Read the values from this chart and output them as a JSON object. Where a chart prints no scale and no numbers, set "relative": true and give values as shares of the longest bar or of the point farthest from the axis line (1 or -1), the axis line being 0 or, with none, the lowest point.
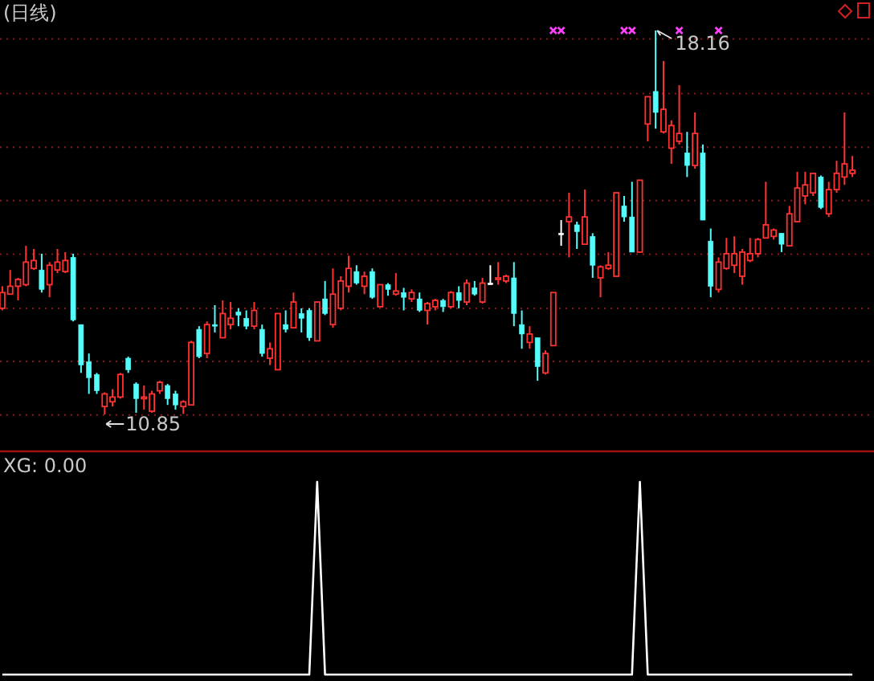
{
  "chart_data": [
    {
      "type": "candlestick",
      "title": "(日线)",
      "categories": [
        null,
        null,
        null,
        null,
        null,
        null,
        null,
        null,
        null,
        null,
        null,
        null,
        null,
        null,
        null,
        null,
        null,
        null,
        null,
        null,
        null,
        null,
        null,
        null,
        null,
        null,
        null,
        null,
        null,
        null,
        null,
        null,
        null,
        null,
        null,
        null,
        null,
        null,
        null,
        null,
        null,
        null,
        null,
        null,
        null,
        null,
        null,
        null,
        null,
        null,
        null,
        null,
        null,
        null,
        null,
        null,
        null,
        null,
        null,
        null,
        null,
        null,
        null,
        null,
        null,
        null,
        null,
        null,
        null,
        null,
        null,
        null,
        null,
        null,
        null,
        null,
        null,
        null,
        null,
        null,
        null,
        null,
        null,
        null,
        null,
        null,
        null,
        null,
        null,
        null,
        null,
        null,
        null,
        null,
        null,
        null,
        null,
        null,
        null,
        null,
        null,
        null,
        null,
        null,
        null,
        null,
        null,
        null,
        null
      ],
      "ohlc": [
        [
          12.87,
          13.29,
          12.83,
          13.17
        ],
        [
          13.14,
          13.6,
          13.14,
          13.29
        ],
        [
          13.29,
          13.45,
          13.02,
          13.42
        ],
        [
          13.32,
          14.06,
          13.29,
          13.75
        ],
        [
          13.63,
          14.0,
          13.6,
          13.78
        ],
        [
          13.6,
          13.91,
          13.17,
          13.23
        ],
        [
          13.32,
          13.75,
          13.08,
          13.69
        ],
        [
          13.6,
          14.0,
          13.54,
          13.75
        ],
        [
          13.57,
          13.94,
          13.54,
          13.78
        ],
        [
          13.84,
          13.91,
          12.62,
          12.65
        ],
        [
          12.56,
          12.56,
          11.64,
          11.79
        ],
        [
          11.85,
          12.01,
          11.24,
          11.55
        ],
        [
          11.61,
          11.64,
          11.24,
          11.3
        ],
        [
          11.0,
          11.27,
          10.85,
          11.24
        ],
        [
          11.09,
          11.33,
          11.0,
          11.18
        ],
        [
          11.18,
          11.64,
          11.15,
          11.61
        ],
        [
          11.92,
          11.95,
          11.64,
          11.7
        ],
        [
          11.43,
          11.46,
          10.88,
          11.15
        ],
        [
          11.15,
          11.4,
          10.94,
          11.18
        ],
        [
          10.91,
          11.3,
          10.88,
          11.24
        ],
        [
          11.3,
          11.49,
          11.24,
          11.46
        ],
        [
          11.4,
          11.43,
          11.03,
          11.15
        ],
        [
          11.24,
          11.3,
          10.94,
          11.03
        ],
        [
          11.0,
          11.12,
          10.86,
          11.09
        ],
        [
          11.03,
          12.25,
          11.03,
          12.22
        ],
        [
          12.47,
          12.53,
          11.92,
          11.95
        ],
        [
          12.01,
          12.62,
          11.92,
          12.56
        ],
        [
          12.56,
          12.93,
          12.41,
          12.53
        ],
        [
          12.31,
          13.02,
          12.31,
          12.77
        ],
        [
          12.56,
          12.99,
          12.47,
          12.68
        ],
        [
          12.8,
          12.87,
          12.53,
          12.74
        ],
        [
          12.68,
          12.83,
          12.47,
          12.53
        ],
        [
          12.53,
          12.99,
          12.47,
          12.83
        ],
        [
          12.47,
          12.56,
          11.95,
          12.01
        ],
        [
          11.92,
          12.22,
          11.79,
          12.1
        ],
        [
          11.7,
          12.77,
          11.7,
          12.77
        ],
        [
          12.56,
          12.83,
          12.41,
          12.47
        ],
        [
          12.5,
          13.17,
          12.5,
          12.99
        ],
        [
          12.77,
          12.87,
          12.41,
          12.68
        ],
        [
          12.83,
          12.87,
          12.25,
          12.31
        ],
        [
          12.25,
          12.99,
          12.25,
          12.99
        ],
        [
          13.05,
          13.39,
          12.74,
          12.77
        ],
        [
          12.56,
          13.63,
          12.5,
          13.14
        ],
        [
          12.87,
          13.48,
          12.83,
          13.39
        ],
        [
          13.29,
          13.87,
          13.17,
          13.63
        ],
        [
          13.57,
          13.69,
          13.32,
          13.35
        ],
        [
          13.29,
          13.57,
          13.14,
          13.48
        ],
        [
          13.57,
          13.63,
          13.05,
          13.08
        ],
        [
          12.9,
          13.32,
          12.9,
          13.32
        ],
        [
          13.32,
          13.35,
          13.11,
          13.23
        ],
        [
          13.14,
          13.54,
          13.11,
          13.2
        ],
        [
          13.17,
          13.26,
          12.83,
          13.08
        ],
        [
          13.05,
          13.23,
          12.99,
          13.17
        ],
        [
          13.05,
          13.17,
          12.8,
          12.83
        ],
        [
          12.83,
          12.99,
          12.56,
          12.96
        ],
        [
          12.9,
          13.05,
          12.83,
          13.02
        ],
        [
          13.02,
          13.05,
          12.8,
          12.9
        ],
        [
          12.9,
          13.2,
          12.87,
          13.17
        ],
        [
          13.17,
          13.29,
          12.87,
          13.02
        ],
        [
          12.99,
          13.42,
          12.93,
          13.35
        ],
        [
          13.26,
          13.39,
          13.11,
          13.14
        ],
        [
          12.99,
          13.45,
          12.96,
          13.35
        ],
        [
          13.35,
          13.69,
          13.32,
          13.35
        ],
        [
          13.42,
          13.75,
          13.32,
          13.45
        ],
        [
          13.39,
          13.51,
          13.35,
          13.48
        ],
        [
          13.45,
          13.75,
          12.53,
          12.77
        ],
        [
          12.56,
          12.83,
          12.1,
          12.38
        ],
        [
          12.22,
          12.53,
          12.1,
          12.38
        ],
        [
          12.31,
          12.31,
          11.49,
          11.76
        ],
        [
          11.64,
          12.07,
          11.61,
          12.01
        ],
        [
          12.16,
          13.17,
          12.16,
          13.17
        ],
        [
          14.3,
          14.55,
          14.06,
          14.3
        ],
        [
          14.52,
          15.07,
          13.84,
          14.61
        ],
        [
          14.46,
          14.52,
          14.0,
          14.33
        ],
        [
          14.09,
          15.13,
          14.09,
          14.61
        ],
        [
          14.24,
          14.3,
          13.45,
          13.69
        ],
        [
          13.45,
          13.69,
          13.08,
          13.66
        ],
        [
          13.63,
          13.94,
          13.6,
          13.69
        ],
        [
          13.48,
          15.07,
          13.48,
          15.07
        ],
        [
          14.82,
          15.01,
          14.52,
          14.61
        ],
        [
          14.61,
          15.28,
          13.94,
          13.94
        ],
        [
          13.94,
          15.31,
          13.94,
          15.31
        ],
        [
          16.38,
          16.9,
          16.05,
          16.9
        ],
        [
          17.0,
          18.16,
          16.29,
          16.6
        ],
        [
          16.23,
          17.58,
          16.2,
          16.66
        ],
        [
          15.92,
          16.45,
          15.62,
          16.35
        ],
        [
          16.05,
          17.12,
          15.99,
          16.2
        ],
        [
          15.83,
          16.23,
          15.37,
          15.59
        ],
        [
          15.59,
          16.6,
          15.53,
          16.2
        ],
        [
          15.83,
          15.99,
          14.55,
          14.55
        ],
        [
          14.15,
          14.39,
          13.08,
          13.29
        ],
        [
          13.23,
          13.84,
          13.17,
          13.75
        ],
        [
          13.63,
          14.21,
          13.6,
          13.91
        ],
        [
          13.69,
          14.24,
          13.54,
          13.91
        ],
        [
          13.48,
          14.0,
          13.32,
          13.94
        ],
        [
          13.78,
          14.21,
          13.75,
          13.91
        ],
        [
          13.91,
          14.21,
          13.84,
          14.18
        ],
        [
          14.21,
          15.28,
          14.21,
          14.46
        ],
        [
          14.24,
          14.39,
          14.18,
          14.36
        ],
        [
          14.3,
          14.3,
          13.94,
          14.09
        ],
        [
          14.06,
          14.82,
          14.06,
          14.67
        ],
        [
          14.52,
          15.47,
          14.52,
          15.16
        ],
        [
          15.01,
          15.47,
          14.85,
          15.22
        ],
        [
          15.07,
          15.44,
          15.01,
          15.44
        ],
        [
          15.37,
          15.4,
          14.76,
          14.79
        ],
        [
          14.67,
          15.28,
          14.61,
          15.13
        ],
        [
          15.13,
          15.68,
          15.07,
          15.44
        ],
        [
          15.37,
          16.6,
          15.22,
          15.62
        ],
        [
          15.44,
          15.77,
          15.37,
          15.5
        ]
      ],
      "colors": [
        "#ff3232",
        "#ff3232",
        "#ff3232",
        "#ff3232",
        "#ff3232",
        "#54fcfc",
        "#ff3232",
        "#ff3232",
        "#ff3232",
        "#54fcfc",
        "#54fcfc",
        "#54fcfc",
        "#54fcfc",
        "#ff3232",
        "#ff3232",
        "#ff3232",
        "#54fcfc",
        "#54fcfc",
        "#ff3232",
        "#ff3232",
        "#ff3232",
        "#54fcfc",
        "#54fcfc",
        "#ff3232",
        "#ff3232",
        "#54fcfc",
        "#ff3232",
        "#54fcfc",
        "#ff3232",
        "#ff3232",
        "#54fcfc",
        "#54fcfc",
        "#ff3232",
        "#54fcfc",
        "#ff3232",
        "#ff3232",
        "#54fcfc",
        "#ff3232",
        "#54fcfc",
        "#54fcfc",
        "#ff3232",
        "#54fcfc",
        "#ff3232",
        "#ff3232",
        "#ff3232",
        "#54fcfc",
        "#ff3232",
        "#54fcfc",
        "#ff3232",
        "#54fcfc",
        "#ff3232",
        "#54fcfc",
        "#ff3232",
        "#54fcfc",
        "#ff3232",
        "#ff3232",
        "#54fcfc",
        "#ff3232",
        "#54fcfc",
        "#ff3232",
        "#54fcfc",
        "#ff3232",
        "#ffffff",
        "#ff3232",
        "#ff3232",
        "#54fcfc",
        "#54fcfc",
        "#ff3232",
        "#54fcfc",
        "#ff3232",
        "#ff3232",
        "#ffffff",
        "#ff3232",
        "#54fcfc",
        "#ff3232",
        "#54fcfc",
        "#ff3232",
        "#ff3232",
        "#ff3232",
        "#54fcfc",
        "#54fcfc",
        "#ff3232",
        "#ff3232",
        "#54fcfc",
        "#ff3232",
        "#ff3232",
        "#ff3232",
        "#54fcfc",
        "#ff3232",
        "#54fcfc",
        "#54fcfc",
        "#ff3232",
        "#ff3232",
        "#ff3232",
        "#ff3232",
        "#ff3232",
        "#ff3232",
        "#ff3232",
        "#ff3232",
        "#54fcfc",
        "#ff3232",
        "#ff3232",
        "#ff3232",
        "#ff3232",
        "#54fcfc",
        "#ff3232",
        "#ff3232",
        "#ff3232",
        "#ff3232"
      ],
      "series": [
        {
          "type": "scatter",
          "marker": "cross",
          "color": "#ff40ff",
          "values": [
            null,
            null,
            null,
            null,
            null,
            null,
            null,
            null,
            null,
            null,
            null,
            null,
            null,
            null,
            null,
            null,
            null,
            null,
            null,
            null,
            null,
            null,
            null,
            null,
            null,
            null,
            null,
            null,
            null,
            null,
            null,
            null,
            null,
            null,
            null,
            null,
            null,
            null,
            null,
            null,
            null,
            null,
            null,
            null,
            null,
            null,
            null,
            null,
            null,
            null,
            null,
            null,
            null,
            null,
            null,
            null,
            null,
            null,
            null,
            null,
            null,
            null,
            null,
            null,
            null,
            null,
            null,
            null,
            null,
            null,
            18.16,
            18.16,
            null,
            null,
            null,
            null,
            null,
            null,
            null,
            18.16,
            18.16,
            null,
            null,
            null,
            null,
            null,
            18.16,
            null,
            null,
            null,
            null,
            18.16,
            null,
            null,
            null,
            null,
            null,
            null,
            null,
            null,
            null,
            null,
            null,
            null,
            null,
            null,
            null,
            null,
            null
          ]
        }
      ],
      "annotations": [
        "18.16",
        "10.85"
      ],
      "yticks": [
        {
          "value": 10.84,
          "label": null
        },
        {
          "value": 11.86,
          "label": null
        },
        {
          "value": 12.87,
          "label": null
        },
        {
          "value": 13.9,
          "label": null
        },
        {
          "value": 14.92,
          "label": null
        },
        {
          "value": 15.94,
          "label": null
        },
        {
          "value": 16.96,
          "label": null
        },
        {
          "value": 18.0,
          "label": null
        }
      ],
      "grid": "y"
    },
    {
      "type": "line",
      "title": "XG: 0.00",
      "categories": [
        null,
        null,
        null,
        null,
        null,
        null,
        null,
        null,
        null,
        null,
        null,
        null,
        null,
        null,
        null,
        null,
        null,
        null,
        null,
        null,
        null,
        null,
        null,
        null,
        null,
        null,
        null,
        null,
        null,
        null,
        null,
        null,
        null,
        null,
        null,
        null,
        null,
        null,
        null,
        null,
        null,
        null,
        null,
        null,
        null,
        null,
        null,
        null,
        null,
        null,
        null,
        null,
        null,
        null,
        null,
        null,
        null,
        null,
        null,
        null,
        null,
        null,
        null,
        null,
        null,
        null,
        null,
        null,
        null,
        null,
        null,
        null,
        null,
        null,
        null,
        null,
        null,
        null,
        null,
        null,
        null,
        null,
        null,
        null,
        null,
        null,
        null,
        null,
        null,
        null,
        null,
        null,
        null,
        null,
        null,
        null,
        null,
        null,
        null,
        null,
        null,
        null,
        null,
        null,
        null,
        null,
        null,
        null,
        null
      ],
      "series": [
        {
          "color": "#ffffff",
          "values": [
            0,
            0,
            0,
            0,
            0,
            0,
            0,
            0,
            0,
            0,
            0,
            0,
            0,
            0,
            0,
            0,
            0,
            0,
            0,
            0,
            0,
            0,
            0,
            0,
            0,
            0,
            0,
            0,
            0,
            0,
            0,
            0,
            0,
            0,
            0,
            0,
            0,
            0,
            0,
            0,
            1,
            0,
            0,
            0,
            0,
            0,
            0,
            0,
            0,
            0,
            0,
            0,
            0,
            0,
            0,
            0,
            0,
            0,
            0,
            0,
            0,
            0,
            0,
            0,
            0,
            0,
            0,
            0,
            0,
            0,
            0,
            0,
            0,
            0,
            0,
            0,
            0,
            0,
            0,
            0,
            0,
            1,
            0,
            0,
            0,
            0,
            0,
            0,
            0,
            0,
            0,
            0,
            0,
            0,
            0,
            0,
            0,
            0,
            0,
            0,
            0,
            0,
            0,
            0,
            0,
            0,
            0,
            0,
            0
          ]
        }
      ],
      "relative": true
    }
  ]
}
